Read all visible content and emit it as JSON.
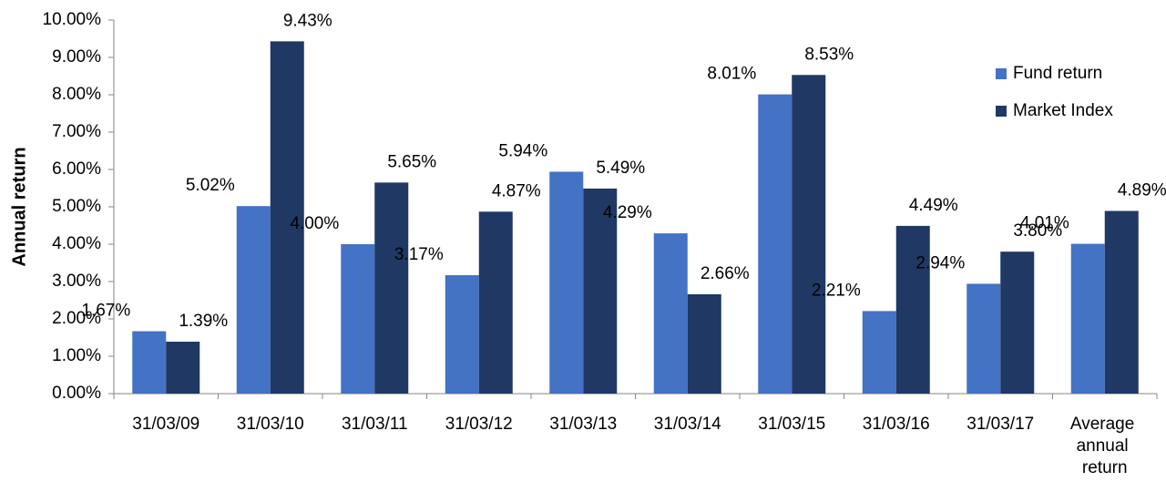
{
  "chart_data": {
    "type": "bar",
    "y_label": "Annual return",
    "categories": [
      "31/03/09",
      "31/03/10",
      "31/03/11",
      "31/03/12",
      "31/03/13",
      "31/03/14",
      "31/03/15",
      "31/03/16",
      "31/03/17",
      "Average annual return"
    ],
    "series": [
      {
        "name": "Fund return",
        "color": "#4472c4",
        "values": [
          1.67,
          5.02,
          4.0,
          3.17,
          5.94,
          4.29,
          8.01,
          2.21,
          2.94,
          4.01
        ],
        "value_labels": [
          "1.67%",
          "5.02%",
          "4.00%",
          "3.17%",
          "5.94%",
          "4.29%",
          "8.01%",
          "2.21%",
          "2.94%",
          "4.01%"
        ]
      },
      {
        "name": "Market Index",
        "color": "#1f3864",
        "values": [
          1.39,
          9.43,
          5.65,
          4.87,
          5.49,
          2.66,
          8.53,
          4.49,
          3.8,
          4.89
        ],
        "value_labels": [
          "1.39%",
          "9.43%",
          "5.65%",
          "4.87%",
          "5.49%",
          "2.66%",
          "8.53%",
          "4.49%",
          "3.80%",
          "4.89%"
        ]
      }
    ],
    "ylim": [
      0,
      10
    ],
    "yticks": [
      {
        "value": 0,
        "label": "0.00%"
      },
      {
        "value": 1,
        "label": "1.00%"
      },
      {
        "value": 2,
        "label": "2.00%"
      },
      {
        "value": 3,
        "label": "3.00%"
      },
      {
        "value": 4,
        "label": "4.00%"
      },
      {
        "value": 5,
        "label": "5.00%"
      },
      {
        "value": 6,
        "label": "6.00%"
      },
      {
        "value": 7,
        "label": "7.00%"
      },
      {
        "value": 8,
        "label": "8.00%"
      },
      {
        "value": 9,
        "label": "9.00%"
      },
      {
        "value": 10,
        "label": "10.00%"
      }
    ],
    "grid": false,
    "legend": "top-right"
  }
}
